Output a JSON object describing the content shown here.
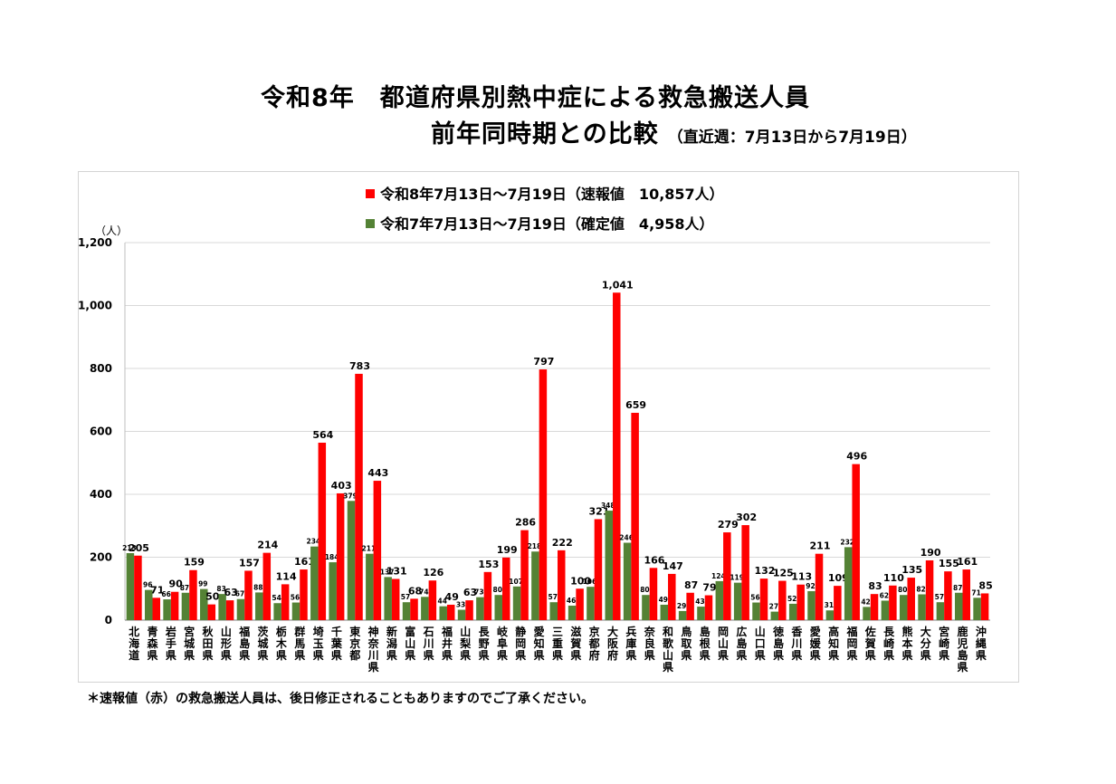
{
  "header": {
    "title_line1": "令和8年　都道府県別熱中症による救急搬送人員",
    "title_line2": "前年同時期との比較",
    "period_note": "（直近週：7月13日から7月19日）"
  },
  "footnote": "＊速報値（赤）の救急搬送人員は、後日修正されることもありますのでご了承ください。",
  "colors": {
    "current": "#ff0000",
    "previous": "#548235",
    "grid": "#d9d9d9"
  },
  "chart_data": {
    "type": "bar",
    "ylabel": "（人）",
    "ylim": [
      0,
      1200
    ],
    "yticks": [
      "0",
      "200",
      "400",
      "600",
      "800",
      "1,000",
      "1,200"
    ],
    "legend_position": "top",
    "grid": true,
    "categories": [
      "北海道",
      "青森県",
      "岩手県",
      "宮城県",
      "秋田県",
      "山形県",
      "福島県",
      "茨城県",
      "栃木県",
      "群馬県",
      "埼玉県",
      "千葉県",
      "東京都",
      "神奈川県",
      "新潟県",
      "富山県",
      "石川県",
      "福井県",
      "山梨県",
      "長野県",
      "岐阜県",
      "静岡県",
      "愛知県",
      "三重県",
      "滋賀県",
      "京都府",
      "大阪府",
      "兵庫県",
      "奈良県",
      "和歌山県",
      "鳥取県",
      "島根県",
      "岡山県",
      "広島県",
      "山口県",
      "徳島県",
      "香川県",
      "愛媛県",
      "高知県",
      "福岡県",
      "佐賀県",
      "長崎県",
      "熊本県",
      "大分県",
      "宮崎県",
      "鹿児島県",
      "沖縄県"
    ],
    "series": [
      {
        "name": "令和7年7月13日～7月19日（確定値　4,958人）",
        "color": "#548235",
        "values": [
          213,
          96,
          66,
          87,
          99,
          83,
          67,
          88,
          54,
          56,
          234,
          184,
          379,
          211,
          137,
          57,
          74,
          44,
          33,
          73,
          80,
          107,
          218,
          57,
          46,
          106,
          348,
          246,
          80,
          49,
          29,
          43,
          124,
          119,
          56,
          27,
          52,
          92,
          31,
          232,
          42,
          62,
          80,
          82,
          57,
          87,
          71
        ]
      },
      {
        "name": "令和8年7月13日～7月19日（速報値　10,857人）",
        "color": "#ff0000",
        "values": [
          205,
          71,
          90,
          159,
          50,
          63,
          157,
          214,
          114,
          161,
          564,
          403,
          783,
          443,
          131,
          68,
          126,
          49,
          63,
          153,
          199,
          286,
          797,
          222,
          100,
          321,
          1041,
          659,
          166,
          147,
          87,
          79,
          279,
          302,
          132,
          125,
          113,
          211,
          109,
          496,
          83,
          110,
          135,
          190,
          155,
          161,
          85
        ]
      }
    ]
  }
}
